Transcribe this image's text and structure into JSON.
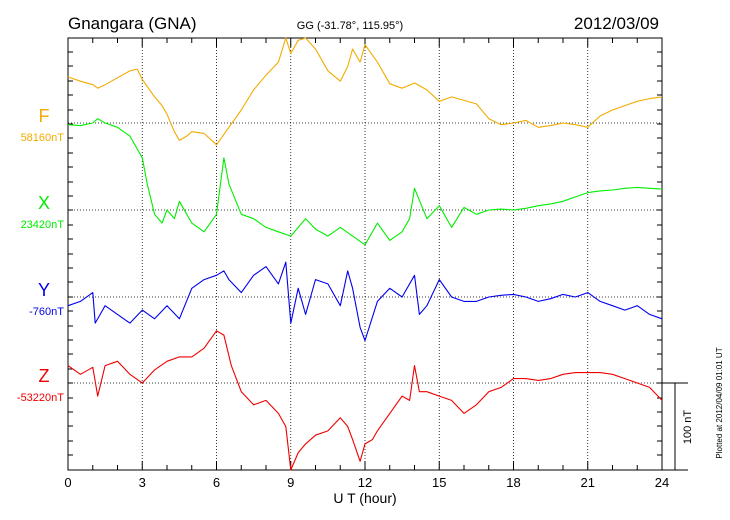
{
  "header": {
    "station": "Gnangara (GNA)",
    "coords": "GG (-31.78°, 115.95°)",
    "date": "2012/03/09"
  },
  "footer": {
    "plotted": "Plotted at 2012/04/09 01:01  UT"
  },
  "chart_data": {
    "type": "line",
    "xlabel": "U T (hour)",
    "xlim": [
      0,
      24
    ],
    "xticks": [
      0,
      3,
      6,
      9,
      12,
      15,
      18,
      21,
      24
    ],
    "x_minor_step": 1,
    "grid": true,
    "scale_bar": {
      "label": "100 nT",
      "nT": 100
    },
    "series": [
      {
        "name": "F",
        "baseline_label": "58160nT",
        "baseline_nT": 58160,
        "color": "#f2ab00",
        "x": [
          0,
          0.5,
          1,
          1.2,
          1.5,
          2,
          2.5,
          2.8,
          3,
          3.5,
          3.8,
          4,
          4.3,
          4.5,
          4.8,
          5,
          5.5,
          6,
          6.5,
          7,
          7.5,
          8,
          8.5,
          8.8,
          9,
          9.3,
          9.6,
          10,
          10.5,
          11,
          11.3,
          11.5,
          11.8,
          12,
          12.5,
          13,
          13.5,
          14,
          14.5,
          15,
          15.5,
          16,
          16.5,
          17,
          17.5,
          18,
          18.5,
          19,
          19.5,
          20,
          20.5,
          21,
          21.5,
          22,
          22.5,
          23,
          23.5,
          24
        ],
        "y": [
          53,
          48,
          44,
          40,
          44,
          52,
          60,
          62,
          50,
          30,
          20,
          10,
          -10,
          -20,
          -15,
          -10,
          -12,
          -25,
          -5,
          15,
          38,
          55,
          70,
          100,
          80,
          95,
          110,
          85,
          60,
          48,
          65,
          85,
          70,
          90,
          70,
          45,
          40,
          46,
          38,
          25,
          30,
          26,
          22,
          5,
          -2,
          0,
          3,
          -5,
          -3,
          0,
          -2,
          -5,
          8,
          15,
          20,
          25,
          28,
          30
        ]
      },
      {
        "name": "X",
        "baseline_label": "23420nT",
        "baseline_nT": 23420,
        "color": "#00ee00",
        "x": [
          0,
          0.5,
          1,
          1.2,
          1.5,
          2,
          2.5,
          3,
          3.2,
          3.5,
          3.8,
          4,
          4.3,
          4.5,
          5,
          5.5,
          6,
          6.3,
          6.5,
          7,
          7.5,
          8,
          8.5,
          9,
          9.3,
          9.6,
          10,
          10.5,
          11,
          11.5,
          12,
          12.5,
          13,
          13.5,
          13.8,
          14,
          14.5,
          15,
          15.5,
          16,
          16.5,
          17,
          17.5,
          18,
          18.5,
          19,
          19.5,
          20,
          20.5,
          21,
          21.5,
          22,
          22.5,
          23,
          23.5,
          24
        ],
        "y": [
          98,
          97,
          100,
          105,
          100,
          95,
          85,
          60,
          30,
          -5,
          -15,
          0,
          -10,
          10,
          -15,
          -25,
          -5,
          60,
          30,
          -5,
          -10,
          -20,
          -25,
          -30,
          -20,
          -10,
          -22,
          -30,
          -20,
          -30,
          -40,
          -15,
          -35,
          -25,
          -10,
          25,
          -10,
          5,
          -20,
          3,
          -5,
          0,
          1,
          0,
          2,
          5,
          7,
          10,
          15,
          20,
          22,
          23,
          25,
          26,
          25,
          24
        ]
      },
      {
        "name": "Y",
        "baseline_label": "-760nT",
        "baseline_nT": -760,
        "color": "#0000ee",
        "x": [
          0,
          0.5,
          1,
          1.1,
          1.3,
          1.5,
          2,
          2.5,
          3,
          3.5,
          4,
          4.5,
          5,
          5.5,
          6,
          6.3,
          6.5,
          7,
          7.5,
          8,
          8.5,
          8.8,
          9,
          9.3,
          9.6,
          10,
          10.5,
          11,
          11.3,
          11.5,
          11.8,
          12,
          12.5,
          13,
          13.5,
          14,
          14.2,
          14.5,
          15,
          15.5,
          16,
          16.5,
          17,
          17.5,
          18,
          18.5,
          19,
          19.5,
          20,
          20.5,
          21,
          21.5,
          22,
          22.5,
          23,
          23.5,
          24
        ],
        "y": [
          -10,
          -5,
          5,
          -30,
          -20,
          -10,
          -20,
          -30,
          -15,
          -25,
          -10,
          -25,
          10,
          20,
          25,
          30,
          20,
          5,
          25,
          35,
          15,
          40,
          -30,
          10,
          -20,
          20,
          15,
          -10,
          30,
          10,
          -35,
          -50,
          -5,
          10,
          0,
          25,
          -20,
          -10,
          20,
          0,
          -5,
          -5,
          0,
          2,
          3,
          0,
          -5,
          -2,
          3,
          0,
          5,
          -5,
          -10,
          -15,
          -10,
          -20,
          -25
        ]
      },
      {
        "name": "Z",
        "baseline_label": "-53220nT",
        "baseline_nT": -53220,
        "color": "#ee0000",
        "x": [
          0,
          0.5,
          1,
          1.2,
          1.5,
          2,
          2.5,
          3,
          3.5,
          4,
          4.5,
          5,
          5.5,
          6,
          6.3,
          6.6,
          7,
          7.5,
          8,
          8.5,
          8.8,
          9,
          9.3,
          9.6,
          10,
          10.5,
          11,
          11.3,
          11.5,
          11.8,
          12,
          12.3,
          12.5,
          13,
          13.5,
          13.8,
          14,
          14.2,
          14.5,
          15,
          15.5,
          16,
          16.5,
          17,
          17.5,
          18,
          18.5,
          19,
          19.5,
          20,
          20.5,
          21,
          21.5,
          22,
          22.5,
          23,
          23.5,
          24
        ],
        "y": [
          20,
          10,
          18,
          -15,
          20,
          25,
          10,
          0,
          15,
          25,
          30,
          30,
          40,
          60,
          55,
          20,
          -10,
          -25,
          -20,
          -35,
          -50,
          -100,
          -80,
          -70,
          -60,
          -55,
          -40,
          -50,
          -65,
          -90,
          -70,
          -65,
          -55,
          -35,
          -15,
          -20,
          20,
          -10,
          -10,
          -15,
          -20,
          -35,
          -25,
          -10,
          -5,
          5,
          5,
          3,
          5,
          10,
          12,
          12,
          12,
          10,
          5,
          0,
          -5,
          -20
        ]
      }
    ]
  }
}
